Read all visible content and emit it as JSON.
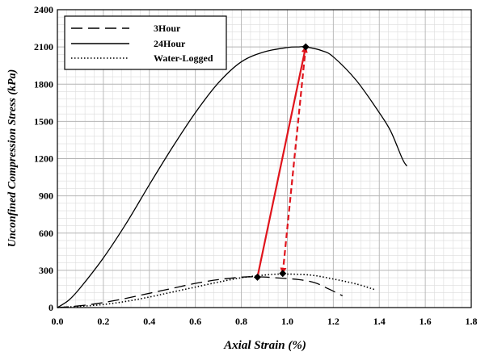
{
  "chart_data": {
    "type": "line",
    "title": "",
    "xlabel": "Axial Strain (%)",
    "ylabel": "Unconfined Compression Stress (kPa)",
    "xlim": [
      0.0,
      1.8
    ],
    "ylim": [
      0,
      2400
    ],
    "x_ticks": [
      0.0,
      0.2,
      0.4,
      0.6,
      0.8,
      1.0,
      1.2,
      1.4,
      1.6,
      1.8
    ],
    "x_tick_labels": [
      "0.0",
      "0.2",
      "0.4",
      "0.6",
      "0.8",
      "1.0",
      "1.2",
      "1.4",
      "1.6",
      "1.8"
    ],
    "y_ticks": [
      0,
      300,
      600,
      900,
      1200,
      1500,
      1800,
      2100,
      2400
    ],
    "y_tick_labels": [
      "0",
      "300",
      "600",
      "900",
      "1200",
      "1500",
      "1800",
      "2100",
      "2400"
    ],
    "minor_grid": true,
    "legend_position": "top-left",
    "series": [
      {
        "name": "3Hour",
        "style": "dashed",
        "x": [
          0.0,
          0.1,
          0.2,
          0.3,
          0.4,
          0.5,
          0.6,
          0.7,
          0.8,
          0.87,
          0.95,
          1.05,
          1.12,
          1.18,
          1.24
        ],
        "y": [
          0,
          15,
          40,
          75,
          115,
          155,
          195,
          225,
          245,
          248,
          240,
          225,
          200,
          150,
          95
        ]
      },
      {
        "name": "24Hour",
        "style": "solid",
        "x": [
          0.0,
          0.05,
          0.1,
          0.2,
          0.3,
          0.4,
          0.5,
          0.6,
          0.7,
          0.8,
          0.9,
          1.0,
          1.05,
          1.08,
          1.15,
          1.2,
          1.3,
          1.4,
          1.45,
          1.5,
          1.52
        ],
        "y": [
          0,
          60,
          160,
          400,
          680,
          990,
          1290,
          1570,
          1810,
          1980,
          2060,
          2095,
          2100,
          2100,
          2070,
          2020,
          1830,
          1570,
          1420,
          1200,
          1140
        ]
      },
      {
        "name": "Water-Logged",
        "style": "dotted",
        "x": [
          0.0,
          0.1,
          0.2,
          0.3,
          0.4,
          0.5,
          0.6,
          0.7,
          0.8,
          0.9,
          0.98,
          1.1,
          1.2,
          1.3,
          1.38
        ],
        "y": [
          0,
          10,
          25,
          50,
          85,
          125,
          165,
          205,
          240,
          262,
          270,
          262,
          230,
          190,
          145
        ]
      }
    ],
    "peak_markers": [
      {
        "series": "3Hour",
        "x": 0.87,
        "y": 245
      },
      {
        "series": "24Hour",
        "x": 1.08,
        "y": 2100
      },
      {
        "series": "Water-Logged",
        "x": 0.98,
        "y": 275
      }
    ],
    "annotations": [
      {
        "from": [
          0.87,
          245
        ],
        "to": [
          1.08,
          2100
        ],
        "style": "solid",
        "color": "#e0141c"
      },
      {
        "from": [
          1.08,
          2100
        ],
        "to": [
          0.98,
          275
        ],
        "style": "dashed",
        "color": "#e0141c"
      }
    ],
    "colors": {
      "curves": "#000000",
      "arrows": "#e0141c",
      "major_grid": "#b4b4b4",
      "minor_grid": "#dcdcdc"
    }
  }
}
